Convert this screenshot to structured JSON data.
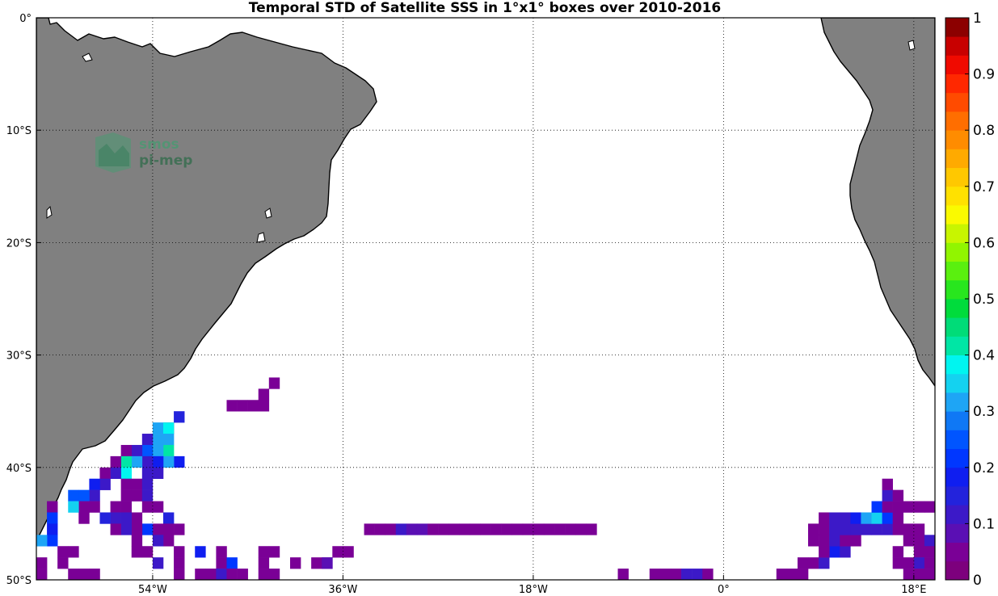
{
  "title": "Temporal STD of Satellite SSS in 1°x1° boxes over 2010-2016",
  "watermark": {
    "line1": "smos",
    "line2": "pi-mep"
  },
  "map": {
    "lon_range": [
      -65,
      20
    ],
    "lat_range": [
      -50,
      0
    ],
    "land_color": "#808080",
    "grid": "dotted",
    "x_ticks": [
      {
        "lon": -54,
        "label": "54°W"
      },
      {
        "lon": -36,
        "label": "36°W"
      },
      {
        "lon": -18,
        "label": "18°W"
      },
      {
        "lon": 0,
        "label": "0°"
      },
      {
        "lon": 18,
        "label": "18°E"
      }
    ],
    "y_ticks": [
      {
        "lat": 0,
        "label": "0°"
      },
      {
        "lat": -10,
        "label": "10°S"
      },
      {
        "lat": -20,
        "label": "20°S"
      },
      {
        "lat": -30,
        "label": "30°S"
      },
      {
        "lat": -40,
        "label": "40°S"
      },
      {
        "lat": -50,
        "label": "50°S"
      }
    ]
  },
  "colorbar": {
    "range": [
      0,
      1
    ],
    "levels": 30,
    "tick_labels": [
      "0",
      "0.1",
      "0.2",
      "0.3",
      "0.4",
      "0.5",
      "0.6",
      "0.7",
      "0.8",
      "0.9",
      "1"
    ],
    "colors": [
      "#7d007d",
      "#7a0096",
      "#5a0fb4",
      "#3c19c8",
      "#2323dc",
      "#0f1ef0",
      "#0037ff",
      "#0055ff",
      "#0f78f5",
      "#1ea5f5",
      "#14d2f0",
      "#00f5f0",
      "#00e6a5",
      "#00dc78",
      "#00dc3c",
      "#28e61e",
      "#5af00f",
      "#91f500",
      "#c8f500",
      "#fafa00",
      "#ffe100",
      "#ffc800",
      "#ffaa00",
      "#ff8c00",
      "#ff6e00",
      "#ff4b00",
      "#ff2800",
      "#f00a00",
      "#c80000",
      "#8c0000"
    ]
  },
  "chart_data": {
    "type": "heatmap",
    "title": "Temporal STD of Satellite SSS in 1°x1° boxes over 2010-2016",
    "xlabel": "",
    "ylabel": "",
    "xlim": [
      -65,
      20
    ],
    "ylim": [
      -50,
      0
    ],
    "colorbar_range": [
      0,
      1
    ],
    "cells": [
      [
        -42.5,
        -32.5,
        0.04
      ],
      [
        -43.5,
        -33.5,
        0.04
      ],
      [
        -43.5,
        -34.5,
        0.04
      ],
      [
        -44.5,
        -34.5,
        0.04
      ],
      [
        -45.5,
        -34.5,
        0.04
      ],
      [
        -46.5,
        -34.5,
        0.04
      ],
      [
        -51.5,
        -35.5,
        0.16
      ],
      [
        -52.5,
        -36.5,
        0.03
      ],
      [
        -53.5,
        -36.5,
        0.3
      ],
      [
        -52.5,
        -36.5,
        0.38
      ],
      [
        -52.5,
        -37.5,
        0.3
      ],
      [
        -53.5,
        -37.5,
        0.3
      ],
      [
        -54.5,
        -37.5,
        0.12
      ],
      [
        -52.5,
        -38.5,
        0.42
      ],
      [
        -53.5,
        -38.5,
        0.3
      ],
      [
        -54.5,
        -38.5,
        0.25
      ],
      [
        -55.5,
        -38.5,
        0.1
      ],
      [
        -56.5,
        -38.5,
        0.04
      ],
      [
        -51.5,
        -39.5,
        0.18
      ],
      [
        -52.5,
        -39.5,
        0.3
      ],
      [
        -53.5,
        -39.5,
        0.18
      ],
      [
        -54.5,
        -39.5,
        0.1
      ],
      [
        -55.5,
        -39.5,
        0.3
      ],
      [
        -56.5,
        -39.5,
        0.4
      ],
      [
        -57.5,
        -39.5,
        0.04
      ],
      [
        -53.5,
        -40.5,
        0.12
      ],
      [
        -54.5,
        -40.5,
        0.1
      ],
      [
        -56.5,
        -40.5,
        0.38
      ],
      [
        -57.5,
        -40.5,
        0.1
      ],
      [
        -58.5,
        -40.5,
        0.04
      ],
      [
        -55.5,
        -41.5,
        0.04
      ],
      [
        -56.5,
        -41.5,
        0.04
      ],
      [
        -58.5,
        -41.5,
        0.12
      ],
      [
        -59.5,
        -41.5,
        0.18
      ],
      [
        -54.5,
        -41.5,
        0.1
      ],
      [
        -55.5,
        -42.5,
        0.04
      ],
      [
        -56.5,
        -42.5,
        0.04
      ],
      [
        -59.5,
        -42.5,
        0.12
      ],
      [
        -60.5,
        -42.5,
        0.25
      ],
      [
        -61.5,
        -42.5,
        0.25
      ],
      [
        -54.5,
        -42.5,
        0.12
      ],
      [
        -53.5,
        -43.5,
        0.04
      ],
      [
        -54.5,
        -43.5,
        0.04
      ],
      [
        -56.5,
        -43.5,
        0.04
      ],
      [
        -57.5,
        -43.5,
        0.04
      ],
      [
        -59.5,
        -43.5,
        0.04
      ],
      [
        -60.5,
        -43.5,
        0.04
      ],
      [
        -61.5,
        -43.5,
        0.35
      ],
      [
        -63.5,
        -43.5,
        0.04
      ],
      [
        -52.5,
        -44.5,
        0.15
      ],
      [
        -55.5,
        -44.5,
        0.04
      ],
      [
        -56.5,
        -44.5,
        0.12
      ],
      [
        -57.5,
        -44.5,
        0.12
      ],
      [
        -58.5,
        -44.5,
        0.15
      ],
      [
        -60.5,
        -44.5,
        0.04
      ],
      [
        -63.5,
        -44.5,
        0.2
      ],
      [
        -51.5,
        -45.5,
        0.04
      ],
      [
        -52.5,
        -45.5,
        0.04
      ],
      [
        -53.5,
        -45.5,
        0.04
      ],
      [
        -54.5,
        -45.5,
        0.2
      ],
      [
        -55.5,
        -45.5,
        0.04
      ],
      [
        -56.5,
        -45.5,
        0.1
      ],
      [
        -57.5,
        -45.5,
        0.04
      ],
      [
        -63.5,
        -45.5,
        0.18
      ],
      [
        -52.5,
        -46.5,
        0.04
      ],
      [
        -53.5,
        -46.5,
        0.12
      ],
      [
        -55.5,
        -46.5,
        0.04
      ],
      [
        -63.5,
        -46.5,
        0.2
      ],
      [
        -64.5,
        -46.5,
        0.3
      ],
      [
        -54.5,
        -47.5,
        0.04
      ],
      [
        -55.5,
        -47.5,
        0.04
      ],
      [
        -51.5,
        -47.5,
        0.04
      ],
      [
        -49.5,
        -47.5,
        0.18
      ],
      [
        -47.5,
        -47.5,
        0.04
      ],
      [
        -43.5,
        -47.5,
        0.04
      ],
      [
        -42.5,
        -47.5,
        0.04
      ],
      [
        -65.5,
        -47.5,
        0.04
      ],
      [
        -62.5,
        -47.5,
        0.04
      ],
      [
        -61.5,
        -47.5,
        0.04
      ],
      [
        -53.5,
        -48.5,
        0.1
      ],
      [
        -51.5,
        -48.5,
        0.04
      ],
      [
        -47.5,
        -48.5,
        0.04
      ],
      [
        -46.5,
        -48.5,
        0.2
      ],
      [
        -43.5,
        -48.5,
        0.04
      ],
      [
        -40.5,
        -48.5,
        0.04
      ],
      [
        -64.5,
        -48.5,
        0.04
      ],
      [
        -62.5,
        -48.5,
        0.04
      ],
      [
        -59.5,
        -49.5,
        0.04
      ],
      [
        -60.5,
        -49.5,
        0.04
      ],
      [
        -61.5,
        -49.5,
        0.04
      ],
      [
        -64.5,
        -49.5,
        0.04
      ],
      [
        -51.5,
        -49.5,
        0.04
      ],
      [
        -49.5,
        -49.5,
        0.04
      ],
      [
        -48.5,
        -49.5,
        0.04
      ],
      [
        -47.5,
        -49.5,
        0.1
      ],
      [
        -46.5,
        -49.5,
        0.04
      ],
      [
        -45.5,
        -49.5,
        0.04
      ],
      [
        -43.5,
        -49.5,
        0.04
      ],
      [
        -42.5,
        -49.5,
        0.04
      ],
      [
        -51.5,
        -50.5,
        0.04
      ],
      [
        -33.5,
        -45.5,
        0.04
      ],
      [
        -32.5,
        -45.5,
        0.04
      ],
      [
        -31.5,
        -45.5,
        0.04
      ],
      [
        -30.5,
        -45.5,
        0.1
      ],
      [
        -29.5,
        -45.5,
        0.08
      ],
      [
        -28.5,
        -45.5,
        0.08
      ],
      [
        -27.5,
        -45.5,
        0.04
      ],
      [
        -26.5,
        -45.5,
        0.04
      ],
      [
        -25.5,
        -45.5,
        0.04
      ],
      [
        -24.5,
        -45.5,
        0.04
      ],
      [
        -23.5,
        -45.5,
        0.04
      ],
      [
        -22.5,
        -45.5,
        0.04
      ],
      [
        -21.5,
        -45.5,
        0.04
      ],
      [
        -20.5,
        -45.5,
        0.04
      ],
      [
        -19.5,
        -45.5,
        0.04
      ],
      [
        -18.5,
        -45.5,
        0.04
      ],
      [
        -17.5,
        -45.5,
        0.04
      ],
      [
        -16.5,
        -45.5,
        0.04
      ],
      [
        -15.5,
        -45.5,
        0.04
      ],
      [
        -14.5,
        -45.5,
        0.04
      ],
      [
        -13.5,
        -45.5,
        0.04
      ],
      [
        -12.5,
        -45.5,
        0.04
      ],
      [
        -36.5,
        -47.5,
        0.04
      ],
      [
        -35.5,
        -47.5,
        0.04
      ],
      [
        -38.5,
        -48.5,
        0.04
      ],
      [
        -37.5,
        -48.5,
        0.04
      ],
      [
        -37.5,
        -48.5,
        0.08
      ],
      [
        -9.5,
        -49.5,
        0.04
      ],
      [
        -9.5,
        -50.5,
        0.04
      ],
      [
        -6.5,
        -49.5,
        0.04
      ],
      [
        -5.5,
        -49.5,
        0.04
      ],
      [
        -4.5,
        -49.5,
        0.04
      ],
      [
        -3.5,
        -49.5,
        0.12
      ],
      [
        -2.5,
        -49.5,
        0.1
      ],
      [
        -1.5,
        -49.5,
        0.04
      ],
      [
        -5.5,
        -50.5,
        0.04
      ],
      [
        -4.5,
        -50.5,
        0.04
      ],
      [
        -3.5,
        -50.5,
        0.04
      ],
      [
        -2.5,
        -50.5,
        0.12
      ],
      [
        -1.5,
        -50.5,
        0.04
      ],
      [
        5.5,
        -49.5,
        0.04
      ],
      [
        6.5,
        -49.5,
        0.04
      ],
      [
        7.5,
        -49.5,
        0.04
      ],
      [
        8.5,
        -48.5,
        0.04
      ],
      [
        7.5,
        -48.5,
        0.04
      ],
      [
        9.5,
        -48.5,
        0.12
      ],
      [
        10.5,
        -47.5,
        0.18
      ],
      [
        9.5,
        -47.5,
        0.04
      ],
      [
        11.5,
        -47.5,
        0.12
      ],
      [
        8.5,
        -46.5,
        0.04
      ],
      [
        9.5,
        -46.5,
        0.04
      ],
      [
        10.5,
        -46.5,
        0.1
      ],
      [
        11.5,
        -46.5,
        0.04
      ],
      [
        12.5,
        -46.5,
        0.04
      ],
      [
        8.5,
        -45.5,
        0.04
      ],
      [
        9.5,
        -45.5,
        0.04
      ],
      [
        10.5,
        -45.5,
        0.1
      ],
      [
        11.5,
        -45.5,
        0.1
      ],
      [
        12.5,
        -45.5,
        0.1
      ],
      [
        13.5,
        -45.5,
        0.12
      ],
      [
        14.5,
        -45.5,
        0.12
      ],
      [
        15.5,
        -45.5,
        0.12
      ],
      [
        16.5,
        -45.5,
        0.04
      ],
      [
        17.5,
        -45.5,
        0.04
      ],
      [
        18.5,
        -45.5,
        0.04
      ],
      [
        9.5,
        -44.5,
        0.04
      ],
      [
        10.5,
        -44.5,
        0.1
      ],
      [
        11.5,
        -44.5,
        0.1
      ],
      [
        12.5,
        -44.5,
        0.18
      ],
      [
        13.5,
        -44.5,
        0.3
      ],
      [
        14.5,
        -44.5,
        0.35
      ],
      [
        15.5,
        -44.5,
        0.2
      ],
      [
        16.5,
        -44.5,
        0.04
      ],
      [
        14.5,
        -43.5,
        0.2
      ],
      [
        15.5,
        -43.5,
        0.04
      ],
      [
        16.5,
        -43.5,
        0.04
      ],
      [
        17.5,
        -43.5,
        0.04
      ],
      [
        18.5,
        -43.5,
        0.04
      ],
      [
        19.5,
        -43.5,
        0.04
      ],
      [
        20.5,
        -43.5,
        0.15
      ],
      [
        15.5,
        -42.5,
        0.1
      ],
      [
        16.5,
        -42.5,
        0.04
      ],
      [
        15.5,
        -41.5,
        0.04
      ],
      [
        17.5,
        -46.5,
        0.04
      ],
      [
        18.5,
        -46.5,
        0.04
      ],
      [
        19.5,
        -46.5,
        0.1
      ],
      [
        18.5,
        -47.5,
        0.04
      ],
      [
        19.5,
        -47.5,
        0.04
      ],
      [
        16.5,
        -47.5,
        0.04
      ],
      [
        18.5,
        -48.5,
        0.1
      ],
      [
        19.5,
        -48.5,
        0.04
      ],
      [
        17.5,
        -48.5,
        0.04
      ],
      [
        17.5,
        -49.5,
        0.04
      ],
      [
        18.5,
        -49.5,
        0.04
      ],
      [
        19.5,
        -49.5,
        0.04
      ],
      [
        16.5,
        -48.5,
        0.04
      ],
      [
        20.5,
        -45.5,
        0.04
      ],
      [
        20.5,
        -44.5,
        0.04
      ],
      [
        20.5,
        -47.5,
        0.04
      ],
      [
        20.5,
        -48.5,
        0.04
      ]
    ]
  }
}
